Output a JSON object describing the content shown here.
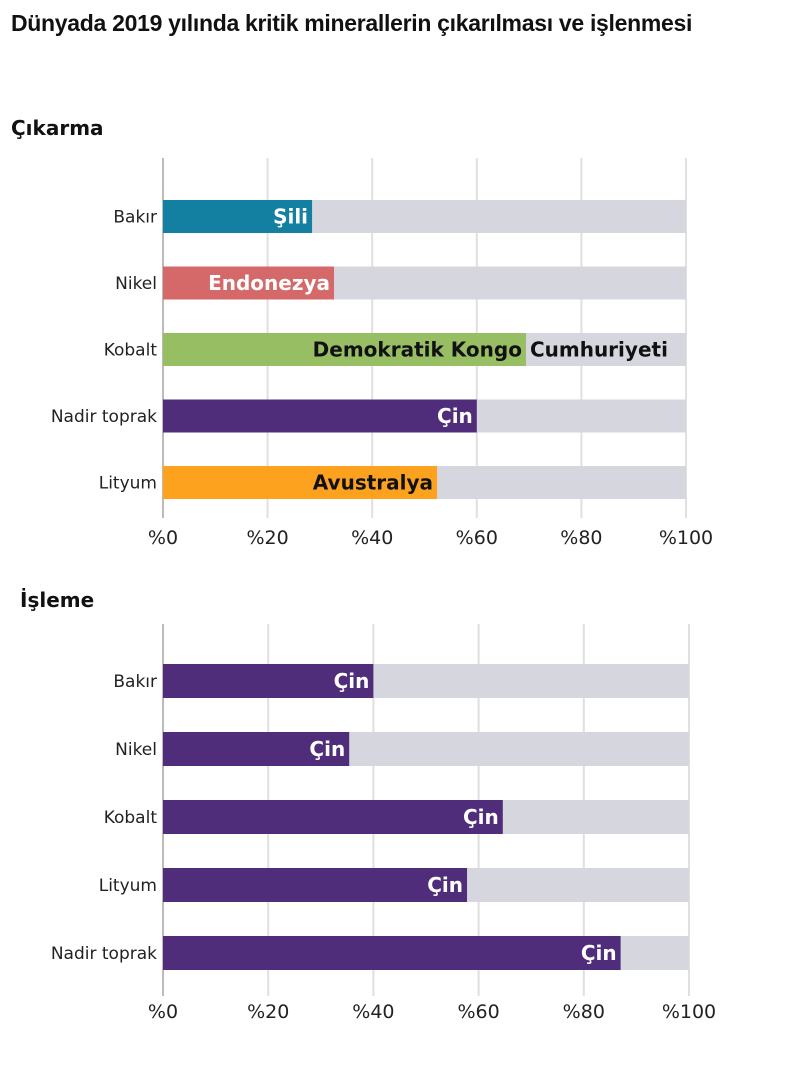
{
  "title": "Dünyada 2019 yılında kritik minerallerin çıkarılması ve işlenmesi",
  "chart_data": [
    {
      "type": "bar",
      "orientation": "horizontal",
      "title": "Çıkarma",
      "categories": [
        "Bakır",
        "Nikel",
        "Kobalt",
        "Nadir toprak",
        "Lityum"
      ],
      "values": [
        28.5,
        32.7,
        69.4,
        60,
        52.4
      ],
      "bar_labels": [
        "Şili",
        "Endonezya",
        "Demokratik Kongo Cumhuriyeti",
        "Çin",
        "Avustralya"
      ],
      "label_colors": [
        "#ffffff",
        "#ffffff",
        "#111111",
        "#ffffff",
        "#111111"
      ],
      "colors": [
        "#1380A1",
        "#D56869",
        "#98BE64",
        "#4F2D7A",
        "#FCA21F"
      ],
      "background_color": "#D6D6DF",
      "xlim": [
        0,
        100
      ],
      "xticks": [
        "%0",
        "%20",
        "%40",
        "%60",
        "%80",
        "%100"
      ],
      "grid": true
    },
    {
      "type": "bar",
      "orientation": "horizontal",
      "title": "İşleme",
      "categories": [
        "Bakır",
        "Nikel",
        "Kobalt",
        "Lityum",
        "Nadir toprak"
      ],
      "values": [
        40,
        35.4,
        64.6,
        57.8,
        87
      ],
      "bar_labels": [
        "Çin",
        "Çin",
        "Çin",
        "Çin",
        "Çin"
      ],
      "label_colors": [
        "#ffffff",
        "#ffffff",
        "#ffffff",
        "#ffffff",
        "#ffffff"
      ],
      "colors": [
        "#4F2D7A",
        "#4F2D7A",
        "#4F2D7A",
        "#4F2D7A",
        "#4F2D7A"
      ],
      "background_color": "#D6D6DF",
      "xlim": [
        0,
        100
      ],
      "xticks": [
        "%0",
        "%20",
        "%40",
        "%60",
        "%80",
        "%100"
      ],
      "grid": true
    }
  ]
}
